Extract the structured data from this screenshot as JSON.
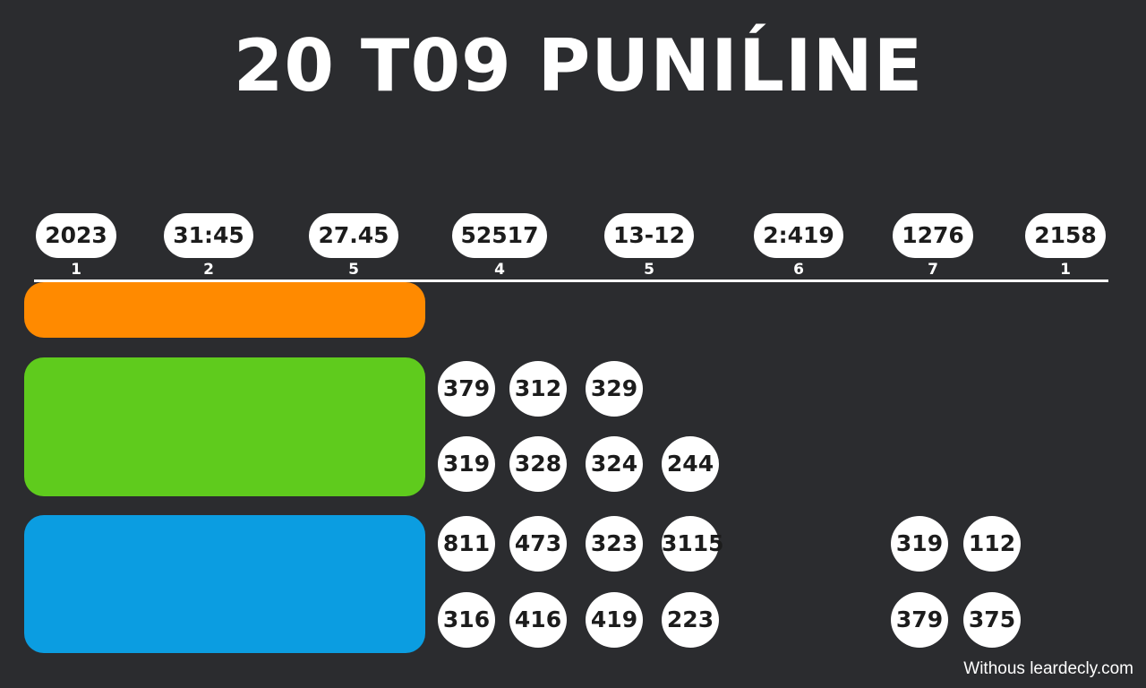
{
  "title": "20 T09 PUNIĹINE",
  "timeline": {
    "stamps": [
      {
        "label": "2023",
        "index": "1"
      },
      {
        "label": "31:45",
        "index": "2"
      },
      {
        "label": "27.45",
        "index": "5"
      },
      {
        "label": "52517",
        "index": "4"
      },
      {
        "label": "13-12",
        "index": "5"
      },
      {
        "label": "2:419",
        "index": "6"
      },
      {
        "label": "1276",
        "index": "7"
      },
      {
        "label": "2158",
        "index": "1"
      }
    ]
  },
  "bars": [
    {
      "color": "#ff8a00"
    },
    {
      "color": "#5fcb1d"
    },
    {
      "color": "#0b9de1"
    }
  ],
  "bubbles": {
    "green_row1": [
      "379",
      "312",
      "329"
    ],
    "green_row2": [
      "319",
      "328",
      "324",
      "244"
    ],
    "blue_row1": [
      "811",
      "473",
      "323",
      "3115"
    ],
    "blue_row1_right": [
      "319",
      "112"
    ],
    "blue_row2": [
      "316",
      "416",
      "419",
      "223"
    ],
    "blue_row2_right": [
      "379",
      "375"
    ]
  },
  "footer": "Withous leardecly.com"
}
